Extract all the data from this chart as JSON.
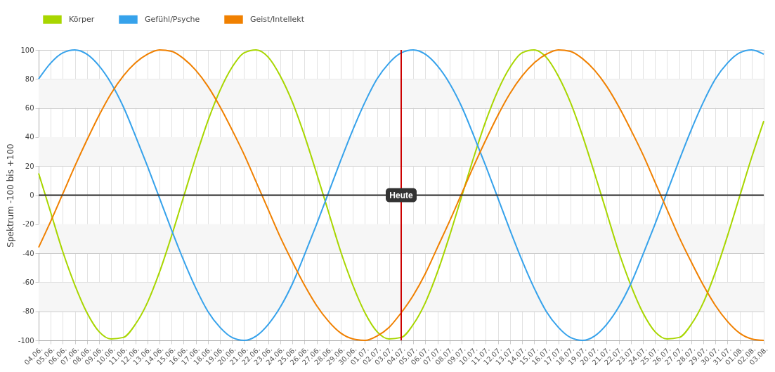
{
  "chart_data": {
    "type": "line",
    "ylabel": "Spektrum -100 bis +100",
    "categories": [
      "04.06.",
      "05.06.",
      "06.06.",
      "07.06.",
      "08.06.",
      "09.06.",
      "10.06.",
      "11.06.",
      "12.06.",
      "13.06.",
      "14.06.",
      "15.06.",
      "16.06.",
      "17.06.",
      "18.06.",
      "19.06.",
      "20.06.",
      "21.06.",
      "22.06.",
      "23.06.",
      "24.06.",
      "25.06.",
      "26.06.",
      "27.06.",
      "28.06.",
      "29.06.",
      "30.06.",
      "01.07.",
      "02.07.",
      "03.07.",
      "04.07.",
      "05.07.",
      "06.07.",
      "07.07.",
      "08.07.",
      "09.07.",
      "10.07.",
      "11.07.",
      "12.07.",
      "13.07.",
      "14.07.",
      "15.07.",
      "16.07.",
      "17.07.",
      "18.07.",
      "19.07.",
      "20.07.",
      "21.07.",
      "22.07.",
      "23.07.",
      "24.07.",
      "25.07.",
      "26.07.",
      "27.07.",
      "28.07.",
      "29.07.",
      "30.07.",
      "31.07.",
      "01.08.",
      "02.08.",
      "03.08."
    ],
    "series": [
      {
        "name": "Körper",
        "color": "#a8d600",
        "values": [
          15,
          -12,
          -39,
          -62,
          -81,
          -94,
          -99,
          -98,
          -89,
          -74,
          -53,
          -28,
          -1,
          26,
          51,
          72,
          88,
          98,
          100,
          95,
          82,
          64,
          41,
          15,
          -12,
          -39,
          -62,
          -81,
          -94,
          -99,
          -98,
          -89,
          -74,
          -53,
          -28,
          -1,
          26,
          51,
          72,
          88,
          98,
          100,
          95,
          82,
          64,
          41,
          15,
          -12,
          -39,
          -62,
          -81,
          -94,
          -99,
          -98,
          -89,
          -74,
          -53,
          -28,
          -1,
          26,
          51
        ]
      },
      {
        "name": "Gefühl/Psyche",
        "color": "#36a2eb",
        "values": [
          80,
          91,
          98,
          100,
          97,
          89,
          77,
          61,
          41,
          20,
          -2,
          -24,
          -45,
          -64,
          -80,
          -91,
          -98,
          -100,
          -97,
          -89,
          -77,
          -61,
          -41,
          -20,
          2,
          24,
          45,
          64,
          80,
          91,
          98,
          100,
          97,
          89,
          77,
          61,
          41,
          20,
          -2,
          -24,
          -45,
          -64,
          -80,
          -91,
          -98,
          -100,
          -97,
          -89,
          -77,
          -61,
          -41,
          -20,
          2,
          24,
          45,
          64,
          80,
          91,
          98,
          100,
          97
        ]
      },
      {
        "name": "Geist/Intellekt",
        "color": "#f08000",
        "values": [
          -36,
          -18,
          1,
          20,
          38,
          55,
          70,
          82,
          91,
          97,
          100,
          99,
          94,
          86,
          75,
          61,
          45,
          28,
          9,
          -10,
          -29,
          -46,
          -62,
          -76,
          -87,
          -95,
          -99,
          -100,
          -97,
          -91,
          -81,
          -69,
          -54,
          -36,
          -18,
          1,
          20,
          38,
          55,
          70,
          82,
          91,
          97,
          100,
          99,
          94,
          86,
          75,
          61,
          45,
          28,
          9,
          -10,
          -29,
          -46,
          -62,
          -76,
          -87,
          -95,
          -99,
          -100
        ]
      }
    ],
    "ylim": [
      -100,
      100
    ],
    "yticks": [
      -100,
      -80,
      -60,
      -40,
      -20,
      0,
      20,
      40,
      60,
      80,
      100
    ],
    "grid": true,
    "legend": "top",
    "marker": "none",
    "line_style": "solid",
    "ref_lines": [
      {
        "axis": "y",
        "value": 0,
        "color": "#333333"
      },
      {
        "axis": "x",
        "value": "04.07.",
        "label": "Heute",
        "color": "#cc0000"
      }
    ],
    "bands": [
      {
        "axis": "y",
        "from": 60,
        "to": 80,
        "color": "#f6f6f6"
      },
      {
        "axis": "y",
        "from": 20,
        "to": 40,
        "color": "#f6f6f6"
      },
      {
        "axis": "y",
        "from": -40,
        "to": -20,
        "color": "#f6f6f6"
      },
      {
        "axis": "y",
        "from": -80,
        "to": -60,
        "color": "#f6f6f6"
      }
    ]
  }
}
